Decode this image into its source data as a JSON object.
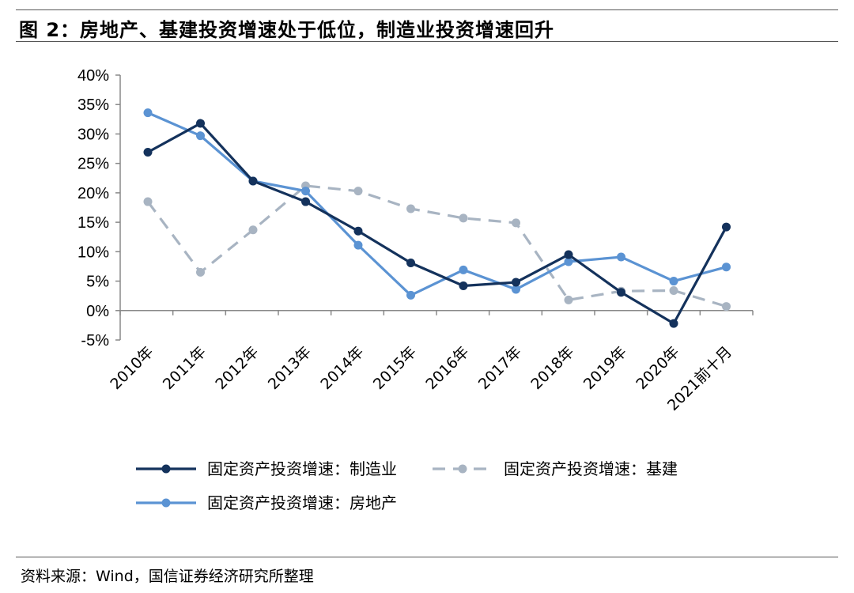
{
  "figure": {
    "title": "图 2：房地产、基建投资增速处于低位，制造业投资增速回升",
    "source": "资料来源：Wind，国信证券经济研究所整理"
  },
  "colors": {
    "manufacturing": "#14325c",
    "infrastructure": "#a8b4c2",
    "realestate": "#5b93d3",
    "axis": "#888888"
  },
  "chart_data": {
    "type": "line",
    "title": "",
    "xlabel": "",
    "ylabel": "",
    "ylim": [
      -5,
      40
    ],
    "y_ticks": [
      "-5%",
      "0%",
      "5%",
      "10%",
      "15%",
      "20%",
      "25%",
      "30%",
      "35%",
      "40%"
    ],
    "y_tick_values": [
      -5,
      0,
      5,
      10,
      15,
      20,
      25,
      30,
      35,
      40
    ],
    "grid": false,
    "legend_position": "bottom",
    "categories": [
      "2010年",
      "2011年",
      "2012年",
      "2013年",
      "2014年",
      "2015年",
      "2016年",
      "2017年",
      "2018年",
      "2019年",
      "2020年",
      "2021前十月"
    ],
    "series": [
      {
        "name": "固定资产投资增速：制造业",
        "style": "solid",
        "color": "#14325c",
        "values": [
          26.9,
          31.8,
          22.0,
          18.5,
          13.5,
          8.1,
          4.2,
          4.8,
          9.5,
          3.1,
          -2.2,
          14.2
        ]
      },
      {
        "name": "固定资产投资增速：基建",
        "style": "dashed",
        "color": "#a8b4c2",
        "values": [
          18.5,
          6.5,
          13.7,
          21.2,
          20.3,
          17.3,
          15.7,
          14.9,
          1.8,
          3.3,
          3.4,
          0.7
        ]
      },
      {
        "name": "固定资产投资增速：房地产",
        "style": "solid",
        "color": "#5b93d3",
        "values": [
          33.6,
          29.7,
          22.0,
          20.3,
          11.1,
          2.6,
          6.9,
          3.6,
          8.3,
          9.1,
          5.0,
          7.4
        ]
      }
    ]
  }
}
